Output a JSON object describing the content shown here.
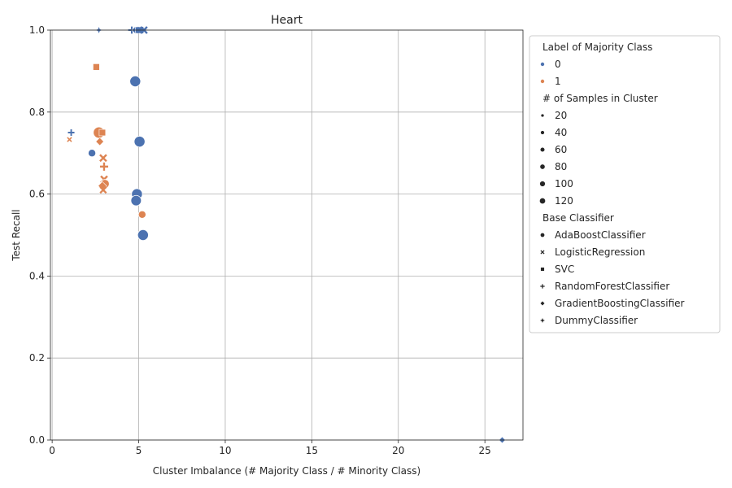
{
  "chart_data": {
    "type": "scatter",
    "title": "Heart",
    "xlabel": "Cluster Imbalance (# Majority Class / # Minority Class)",
    "ylabel": "Test Recall",
    "xlim": [
      -0.1,
      27.2
    ],
    "ylim": [
      0.0,
      1.0
    ],
    "xticks": [
      0,
      5,
      10,
      15,
      20,
      25
    ],
    "xtick_labels": [
      "0",
      "5",
      "10",
      "15",
      "20",
      "25"
    ],
    "yticks": [
      0.0,
      0.2,
      0.4,
      0.6,
      0.8,
      1.0
    ],
    "ytick_labels": [
      "0.0",
      "0.2",
      "0.4",
      "0.6",
      "0.8",
      "1.0"
    ],
    "grid": true,
    "legend_position": "outside-right",
    "colors": {
      "0": "#4c72b0",
      "1": "#dd8452"
    },
    "legend": {
      "hue_title": "Label of Majority Class",
      "hue_entries": [
        {
          "label": "0",
          "color": "#4c72b0"
        },
        {
          "label": "1",
          "color": "#dd8452"
        }
      ],
      "size_title": "# of Samples in Cluster",
      "size_entries": [
        {
          "label": "20",
          "value": 20
        },
        {
          "label": "40",
          "value": 40
        },
        {
          "label": "60",
          "value": 60
        },
        {
          "label": "80",
          "value": 80
        },
        {
          "label": "100",
          "value": 100
        },
        {
          "label": "120",
          "value": 120
        }
      ],
      "style_title": "Base Classifier",
      "style_entries": [
        {
          "label": "AdaBoostClassifier",
          "marker": "circle"
        },
        {
          "label": "LogisticRegression",
          "marker": "x"
        },
        {
          "label": "SVC",
          "marker": "square"
        },
        {
          "label": "RandomForestClassifier",
          "marker": "plus"
        },
        {
          "label": "GradientBoostingClassifier",
          "marker": "diamond"
        },
        {
          "label": "DummyClassifier",
          "marker": "star"
        }
      ]
    },
    "points": [
      {
        "x": 2.7,
        "y": 1.0,
        "label": "0",
        "size": 20,
        "marker": "star"
      },
      {
        "x": 4.6,
        "y": 1.0,
        "label": "0",
        "size": 40,
        "marker": "plus"
      },
      {
        "x": 4.8,
        "y": 1.0,
        "label": "0",
        "size": 30,
        "marker": "diamond"
      },
      {
        "x": 5.0,
        "y": 1.0,
        "label": "0",
        "size": 40,
        "marker": "square"
      },
      {
        "x": 5.1,
        "y": 1.0,
        "label": "0",
        "size": 40,
        "marker": "x"
      },
      {
        "x": 5.3,
        "y": 1.0,
        "label": "0",
        "size": 60,
        "marker": "x"
      },
      {
        "x": 2.55,
        "y": 0.91,
        "label": "1",
        "size": 40,
        "marker": "square"
      },
      {
        "x": 4.8,
        "y": 0.875,
        "label": "0",
        "size": 110,
        "marker": "circle"
      },
      {
        "x": 1.1,
        "y": 0.75,
        "label": "0",
        "size": 30,
        "marker": "plus"
      },
      {
        "x": 1.0,
        "y": 0.733,
        "label": "1",
        "size": 15,
        "marker": "x"
      },
      {
        "x": 2.7,
        "y": 0.75,
        "label": "1",
        "size": 120,
        "marker": "circle"
      },
      {
        "x": 2.9,
        "y": 0.75,
        "label": "1",
        "size": 40,
        "marker": "square"
      },
      {
        "x": 5.05,
        "y": 0.728,
        "label": "0",
        "size": 110,
        "marker": "circle"
      },
      {
        "x": 2.3,
        "y": 0.7,
        "label": "0",
        "size": 40,
        "marker": "circle"
      },
      {
        "x": 2.75,
        "y": 0.728,
        "label": "1",
        "size": 40,
        "marker": "diamond"
      },
      {
        "x": 2.95,
        "y": 0.688,
        "label": "1",
        "size": 60,
        "marker": "x"
      },
      {
        "x": 3.0,
        "y": 0.667,
        "label": "1",
        "size": 60,
        "marker": "plus"
      },
      {
        "x": 3.0,
        "y": 0.636,
        "label": "1",
        "size": 60,
        "marker": "x"
      },
      {
        "x": 3.05,
        "y": 0.625,
        "label": "1",
        "size": 60,
        "marker": "circle"
      },
      {
        "x": 2.9,
        "y": 0.62,
        "label": "1",
        "size": 50,
        "marker": "diamond"
      },
      {
        "x": 2.95,
        "y": 0.61,
        "label": "1",
        "size": 50,
        "marker": "x"
      },
      {
        "x": 4.9,
        "y": 0.6,
        "label": "0",
        "size": 110,
        "marker": "circle"
      },
      {
        "x": 4.85,
        "y": 0.584,
        "label": "0",
        "size": 100,
        "marker": "circle"
      },
      {
        "x": 5.2,
        "y": 0.55,
        "label": "1",
        "size": 40,
        "marker": "circle"
      },
      {
        "x": 5.25,
        "y": 0.5,
        "label": "0",
        "size": 110,
        "marker": "circle"
      },
      {
        "x": 26.0,
        "y": 0.0,
        "label": "0",
        "size": 20,
        "marker": "diamond"
      }
    ]
  }
}
